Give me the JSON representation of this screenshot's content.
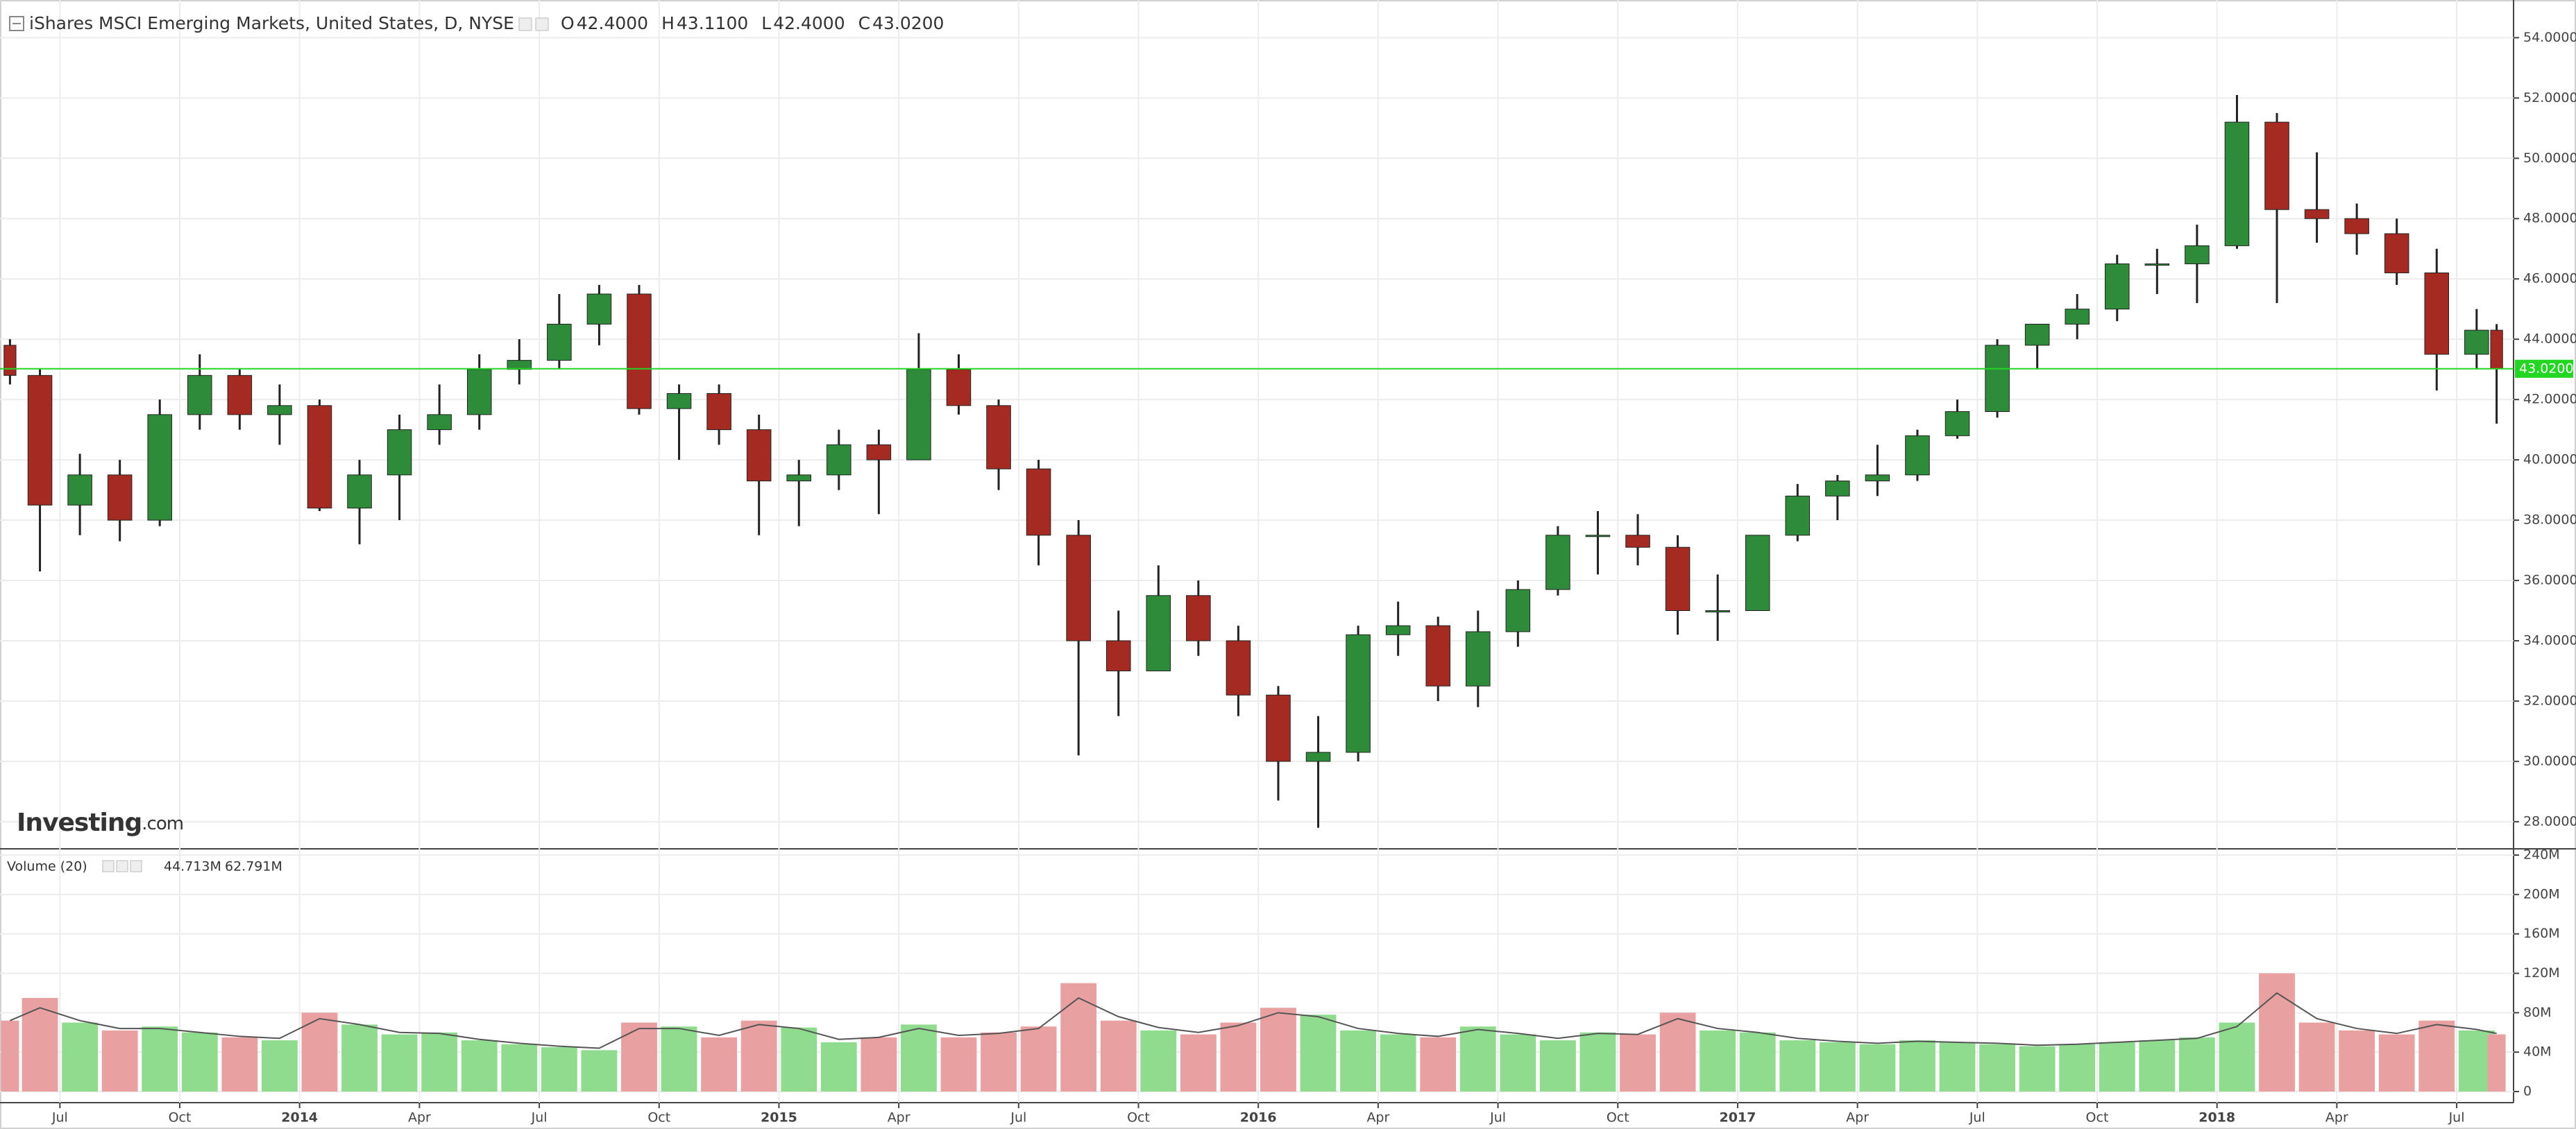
{
  "chart_data": {
    "type": "candlestick",
    "title": "iShares MSCI Emerging Markets, United States, D, NYSE",
    "ohlc_legend": [
      {
        "label": "O",
        "value": "42.4000"
      },
      {
        "label": "H",
        "value": "43.1100"
      },
      {
        "label": "L",
        "value": "42.4000"
      },
      {
        "label": "C",
        "value": "43.0200"
      }
    ],
    "brand": {
      "name": "Investing",
      "suffix": ".com"
    },
    "x": [
      4.75,
      5.5,
      6.5,
      7.5,
      8.5,
      9.5,
      10.5,
      11.5,
      12.5,
      13.5,
      14.5,
      15.5,
      16.5,
      17.5,
      18.5,
      19.5,
      20.5,
      21.5,
      22.5,
      23.5,
      24.5,
      25.5,
      26.5,
      27.5,
      28.5,
      29.5,
      30.5,
      31.5,
      32.5,
      33.5,
      34.5,
      35.5,
      36.5,
      37.5,
      38.5,
      39.5,
      40.5,
      41.5,
      42.5,
      43.5,
      44.5,
      45.5,
      46.5,
      47.5,
      48.5,
      49.5,
      50.5,
      51.5,
      52.5,
      53.5,
      54.5,
      55.5,
      56.5,
      57.5,
      58.5,
      59.5,
      60.5,
      61.5,
      62.5,
      63.5,
      64.5,
      65.5,
      66.5,
      67.0
    ],
    "open": [
      43.8,
      42.8,
      38.5,
      39.5,
      38,
      41.5,
      42.8,
      41.5,
      41.8,
      38.4,
      39.5,
      41,
      41.5,
      43,
      43.3,
      44.5,
      45.5,
      41.7,
      42.2,
      41,
      39.3,
      39.5,
      40.5,
      40,
      43,
      41.8,
      39.7,
      37.5,
      34,
      33,
      35.5,
      34,
      32.2,
      30,
      30.3,
      34.2,
      34.5,
      32.5,
      34.3,
      35.7,
      37.5,
      37.5,
      37.1,
      35,
      35,
      37.5,
      38.8,
      39.3,
      39.5,
      40.8,
      41.6,
      43.8,
      44.5,
      45,
      46.5,
      46.5,
      47.1,
      51.2,
      48.3,
      48,
      47.5,
      46.2,
      43.5,
      44.3
    ],
    "high": [
      44.0,
      43.0,
      40.2,
      40,
      42,
      43.5,
      43,
      42.5,
      42,
      40,
      41.5,
      42.5,
      43.5,
      44,
      45.5,
      45.8,
      45.8,
      42.5,
      42.5,
      41.5,
      40,
      41,
      41,
      44.2,
      43.5,
      42,
      40,
      38,
      35,
      36.5,
      36,
      34.5,
      32.5,
      31.5,
      34.5,
      35.3,
      34.8,
      35,
      36,
      37.8,
      38.3,
      38.2,
      37.5,
      36.2,
      37.5,
      39.2,
      39.5,
      40.5,
      41,
      42,
      44,
      44.5,
      45.5,
      46.8,
      47,
      47.8,
      52.1,
      51.5,
      50.2,
      48.5,
      48,
      47,
      45,
      44.5
    ],
    "low": [
      42.5,
      36.3,
      37.5,
      37.3,
      37.8,
      41,
      41,
      40.5,
      38.3,
      37.2,
      38,
      40.5,
      41,
      42.5,
      43,
      43.8,
      41.5,
      40,
      40.5,
      37.5,
      37.8,
      39,
      38.2,
      40,
      41.5,
      39,
      36.5,
      30.2,
      31.5,
      33,
      33.5,
      31.5,
      28.7,
      27.8,
      30,
      33.5,
      32,
      31.8,
      33.8,
      35.5,
      36.2,
      36.5,
      34.2,
      34,
      35,
      37.3,
      38,
      38.8,
      39.3,
      40.7,
      41.4,
      43,
      44,
      44.6,
      45.5,
      45.2,
      47,
      45.2,
      47.2,
      46.8,
      45.8,
      42.3,
      43,
      41.2
    ],
    "close": [
      42.8,
      38.5,
      39.5,
      38,
      41.5,
      42.8,
      41.5,
      41.8,
      38.4,
      39.5,
      41,
      41.5,
      43,
      43.3,
      44.5,
      45.5,
      41.7,
      42.2,
      41,
      39.3,
      39.5,
      40.5,
      40,
      43,
      41.8,
      39.7,
      37.5,
      34,
      33,
      35.5,
      34,
      32.2,
      30,
      30.3,
      34.2,
      34.5,
      32.5,
      34.3,
      35.7,
      37.5,
      37.5,
      37.1,
      35,
      35,
      37.5,
      38.8,
      39.3,
      39.5,
      40.8,
      41.6,
      43.8,
      44.5,
      45,
      46.5,
      46.5,
      47.1,
      51.2,
      48.3,
      48,
      47.5,
      46.2,
      43.5,
      44.3,
      43.02
    ],
    "last_price": {
      "value": 43.02,
      "label": "43.0200"
    },
    "xlim": [
      4.5,
      67.25
    ],
    "xticks": [
      {
        "value": 6,
        "label": "Jul"
      },
      {
        "value": 9,
        "label": "Oct"
      },
      {
        "value": 12,
        "label": "2014"
      },
      {
        "value": 15,
        "label": "Apr"
      },
      {
        "value": 18,
        "label": "Jul"
      },
      {
        "value": 21,
        "label": "Oct"
      },
      {
        "value": 24,
        "label": "2015"
      },
      {
        "value": 27,
        "label": "Apr"
      },
      {
        "value": 30,
        "label": "Jul"
      },
      {
        "value": 33,
        "label": "Oct"
      },
      {
        "value": 36,
        "label": "2016"
      },
      {
        "value": 39,
        "label": "Apr"
      },
      {
        "value": 42,
        "label": "Jul"
      },
      {
        "value": 45,
        "label": "Oct"
      },
      {
        "value": 48,
        "label": "2017"
      },
      {
        "value": 51,
        "label": "Apr"
      },
      {
        "value": 54,
        "label": "Jul"
      },
      {
        "value": 57,
        "label": "Oct"
      },
      {
        "value": 60,
        "label": "2018"
      },
      {
        "value": 63,
        "label": "Apr"
      },
      {
        "value": 66,
        "label": "Jul"
      }
    ],
    "ylim": [
      27.1,
      55.25
    ],
    "yticks": [
      {
        "value": 28,
        "label": "28.0000"
      },
      {
        "value": 30,
        "label": "30.0000"
      },
      {
        "value": 32,
        "label": "32.0000"
      },
      {
        "value": 34,
        "label": "34.0000"
      },
      {
        "value": 36,
        "label": "36.0000"
      },
      {
        "value": 38,
        "label": "38.0000"
      },
      {
        "value": 40,
        "label": "40.0000"
      },
      {
        "value": 42,
        "label": "42.0000"
      },
      {
        "value": 44,
        "label": "44.0000"
      },
      {
        "value": 46,
        "label": "46.0000"
      },
      {
        "value": 48,
        "label": "48.0000"
      },
      {
        "value": 50,
        "label": "50.0000"
      },
      {
        "value": 52,
        "label": "52.0000"
      },
      {
        "value": 54,
        "label": "54.0000"
      }
    ],
    "grid": true,
    "up_color": "#2e8b3a",
    "down_color": "#a52a22",
    "last_color": "#22d622",
    "volume": {
      "title": "Volume (20)",
      "legend": [
        "44.713M",
        "62.791M"
      ],
      "values": [
        72,
        95,
        70,
        62,
        66,
        60,
        55,
        52,
        80,
        68,
        58,
        60,
        52,
        48,
        45,
        42,
        70,
        66,
        55,
        72,
        65,
        50,
        55,
        68,
        55,
        60,
        66,
        110,
        72,
        62,
        58,
        70,
        85,
        78,
        62,
        58,
        55,
        66,
        58,
        52,
        60,
        58,
        80,
        62,
        60,
        52,
        50,
        48,
        52,
        50,
        48,
        46,
        48,
        50,
        52,
        55,
        70,
        120,
        70,
        62,
        58,
        72,
        62,
        58
      ],
      "ma": [
        72,
        85,
        72,
        64,
        64,
        60,
        56,
        54,
        74,
        68,
        60,
        59,
        53,
        49,
        46,
        44,
        64,
        64,
        57,
        68,
        64,
        53,
        55,
        64,
        57,
        59,
        64,
        95,
        76,
        65,
        60,
        67,
        80,
        76,
        64,
        59,
        56,
        63,
        59,
        54,
        59,
        58,
        74,
        64,
        60,
        54,
        51,
        49,
        51,
        50,
        49,
        47,
        48,
        50,
        52,
        54,
        66,
        100,
        74,
        64,
        59,
        68,
        63,
        59
      ],
      "y2lim": [
        0,
        240
      ],
      "y2ticks": [
        0,
        {
          "value": 40,
          "label": "40M"
        },
        {
          "value": 80,
          "label": "80M"
        },
        {
          "value": 120,
          "label": "120M"
        },
        {
          "value": 160,
          "label": "160M"
        },
        {
          "value": 200,
          "label": "200M"
        },
        {
          "value": 240,
          "label": "240M"
        }
      ],
      "up_color": "#8fdc8f",
      "down_color": "#e8a0a0",
      "ma_color": "#555555"
    }
  }
}
